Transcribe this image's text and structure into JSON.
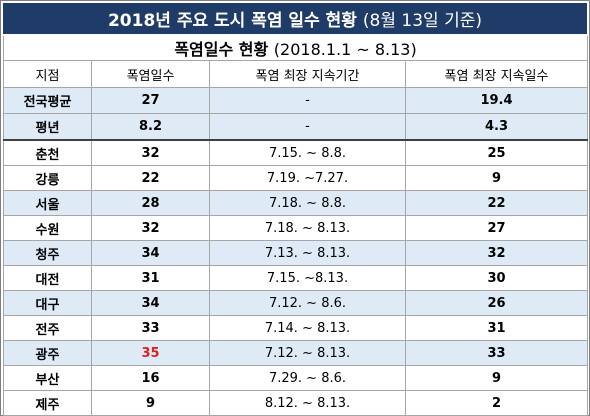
{
  "title": {
    "main": "2018년 주요 도시 폭염 일수 현황",
    "sub": "(8월 13일 기준)"
  },
  "subtitle": {
    "label": "폭염일수 현황",
    "range": "(2018.1.1 ~ 8.13)"
  },
  "header": {
    "col1": "지점",
    "col2": "폭염일수",
    "col3": "폭염 최장 지속기간",
    "col4": "폭염 최장 지속일수"
  },
  "summary": [
    {
      "name": "전국평균",
      "days": "27",
      "period": "-",
      "max": "19.4"
    },
    {
      "name": "평년",
      "days": "8.2",
      "period": "-",
      "max": "4.3"
    }
  ],
  "rows": [
    {
      "name": "춘천",
      "days": "32",
      "period": "7.15. ~ 8.8.",
      "max": "25"
    },
    {
      "name": "강릉",
      "days": "22",
      "period": "7.19. ~7.27.",
      "max": "9"
    },
    {
      "name": "서울",
      "days": "28",
      "period": "7.18. ~ 8.8.",
      "max": "22"
    },
    {
      "name": "수원",
      "days": "32",
      "period": "7.18. ~ 8.13.",
      "max": "27"
    },
    {
      "name": "청주",
      "days": "34",
      "period": "7.13. ~ 8.13.",
      "max": "32"
    },
    {
      "name": "대전",
      "days": "31",
      "period": "7.15. ~8.13.",
      "max": "30"
    },
    {
      "name": "대구",
      "days": "34",
      "period": "7.12. ~ 8.6.",
      "max": "26"
    },
    {
      "name": "전주",
      "days": "33",
      "period": "7.14. ~ 8.13.",
      "max": "31"
    },
    {
      "name": "광주",
      "days": "35",
      "period": "7.12. ~ 8.13.",
      "max": "33"
    },
    {
      "name": "부산",
      "days": "16",
      "period": "7.29. ~ 8.6.",
      "max": "9"
    },
    {
      "name": "제주",
      "days": "9",
      "period": "8.12. ~ 8.13.",
      "max": "2"
    }
  ],
  "colors": {
    "title_bg": "#1f3b67",
    "shade": "#deebf7",
    "highlight": "#e02020"
  }
}
